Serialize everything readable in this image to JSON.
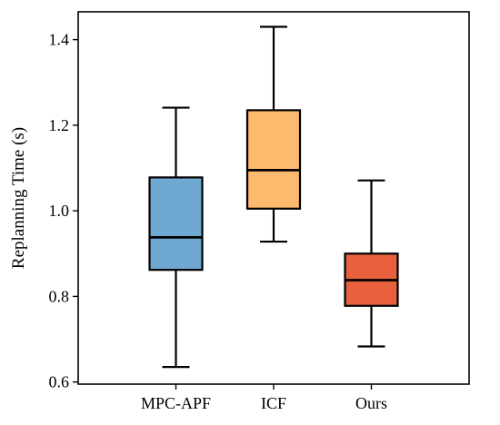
{
  "chart_data": {
    "type": "box",
    "title": "",
    "xlabel": "",
    "ylabel": "Replanning Time (s)",
    "ylim": [
      0.595,
      1.465
    ],
    "yticks": [
      0.6,
      0.8,
      1.0,
      1.2,
      1.4
    ],
    "ytick_labels": [
      "0.6",
      "0.8",
      "1.0",
      "1.2",
      "1.4"
    ],
    "categories": [
      "MPC-APF",
      "ICF",
      "Ours"
    ],
    "boxes": [
      {
        "category": "MPC-APF",
        "whisker_low": 0.635,
        "q1": 0.862,
        "median": 0.938,
        "q3": 1.078,
        "whisker_high": 1.241,
        "color": "#6fa8d1"
      },
      {
        "category": "ICF",
        "whisker_low": 0.928,
        "q1": 1.005,
        "median": 1.095,
        "q3": 1.235,
        "whisker_high": 1.43,
        "color": "#fdb96e"
      },
      {
        "category": "Ours",
        "whisker_low": 0.683,
        "q1": 0.778,
        "median": 0.838,
        "q3": 0.9,
        "whisker_high": 1.071,
        "color": "#e8603e"
      }
    ],
    "grid": false,
    "legend": "none"
  }
}
